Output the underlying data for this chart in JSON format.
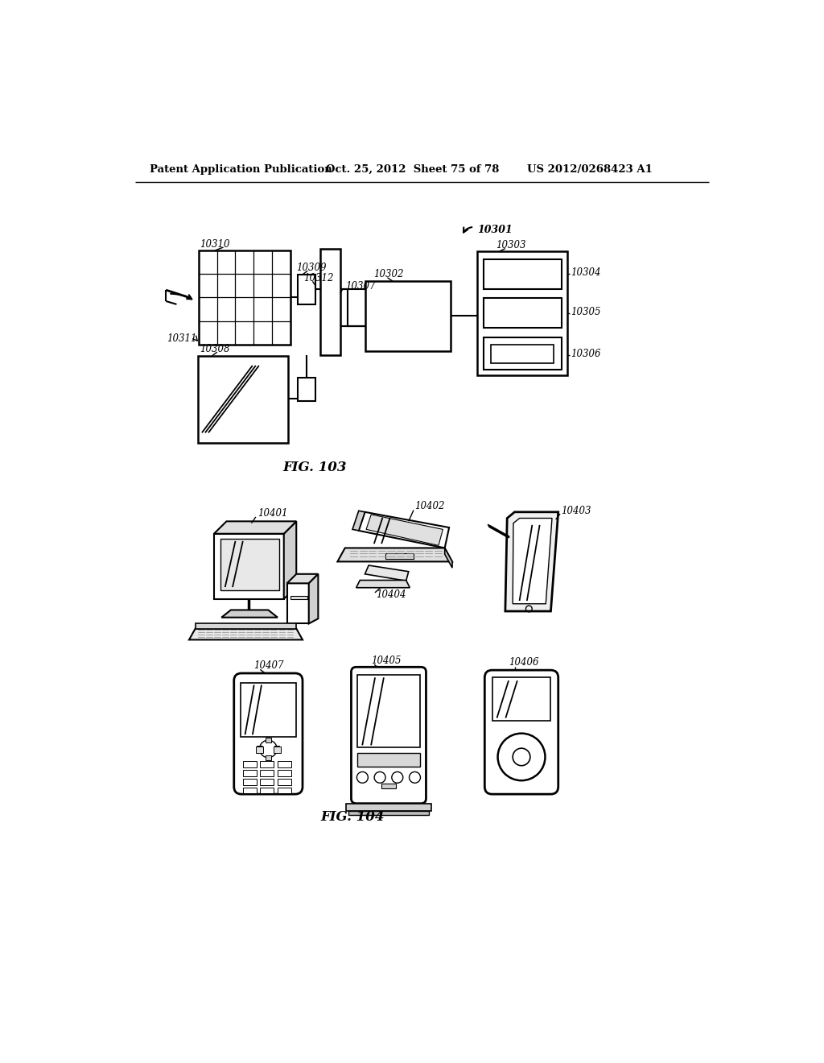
{
  "header_left": "Patent Application Publication",
  "header_mid": "Oct. 25, 2012  Sheet 75 of 78",
  "header_right": "US 2012/0268423 A1",
  "fig103_label": "FIG. 103",
  "fig104_label": "FIG. 104",
  "background_color": "#ffffff",
  "line_color": "#000000"
}
